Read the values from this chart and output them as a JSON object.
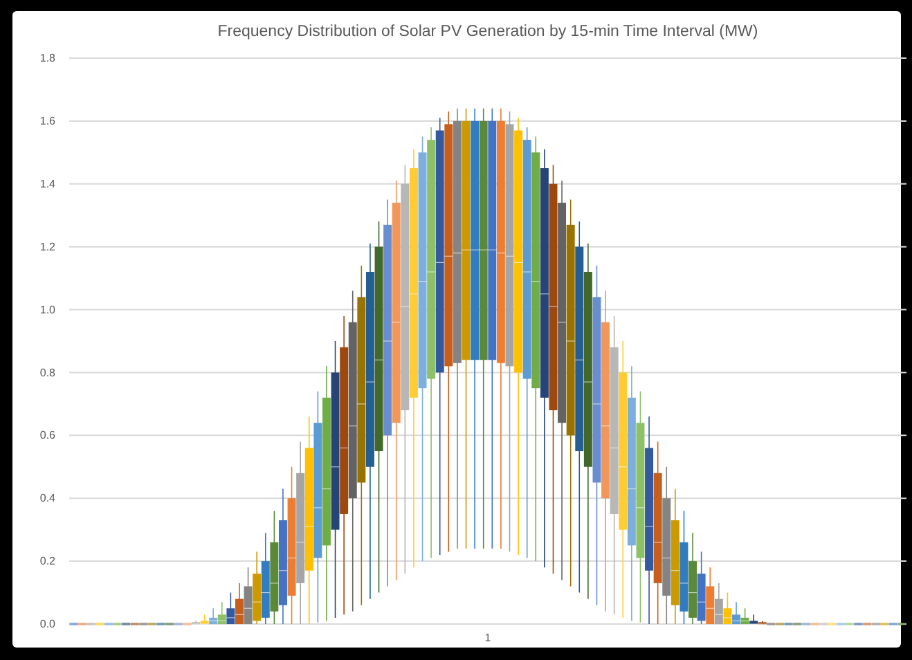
{
  "chart_data": {
    "type": "box",
    "title": "Frequency Distribution of Solar PV Generation by 15-min Time Interval (MW)",
    "categories": [
      "1"
    ],
    "ylim": [
      0,
      1.8
    ],
    "yticks": [
      {
        "value": 0,
        "label": "0.0"
      },
      {
        "value": 0.2,
        "label": "0.2"
      },
      {
        "value": 0.4,
        "label": "0.4"
      },
      {
        "value": 0.6,
        "label": "0.6"
      },
      {
        "value": 0.8,
        "label": "0.8"
      },
      {
        "value": 1,
        "label": "1.0"
      },
      {
        "value": 1.2,
        "label": "1.2"
      },
      {
        "value": 1.4,
        "label": "1.4"
      },
      {
        "value": 1.6,
        "label": "1.6"
      },
      {
        "value": 1.8,
        "label": "1.8"
      }
    ],
    "grid": "y",
    "series": [
      {
        "color": "#4472c4",
        "boxes": [
          {
            "low": 0,
            "q1": 0,
            "median": 0,
            "q3": 0,
            "high": 0
          }
        ]
      },
      {
        "color": "#ed7d31",
        "boxes": [
          {
            "low": 0,
            "q1": 0,
            "median": 0,
            "q3": 0,
            "high": 0
          }
        ]
      },
      {
        "color": "#a5a5a5",
        "boxes": [
          {
            "low": 0,
            "q1": 0,
            "median": 0,
            "q3": 0,
            "high": 0
          }
        ]
      },
      {
        "color": "#ffc000",
        "boxes": [
          {
            "low": 0,
            "q1": 0,
            "median": 0,
            "q3": 0,
            "high": 0
          }
        ]
      },
      {
        "color": "#5b9bd5",
        "boxes": [
          {
            "low": 0,
            "q1": 0,
            "median": 0,
            "q3": 0,
            "high": 0
          }
        ]
      },
      {
        "color": "#70ad47",
        "boxes": [
          {
            "low": 0,
            "q1": 0,
            "median": 0,
            "q3": 0,
            "high": 0
          }
        ]
      },
      {
        "color": "#264478",
        "boxes": [
          {
            "low": 0,
            "q1": 0,
            "median": 0,
            "q3": 0,
            "high": 0
          }
        ]
      },
      {
        "color": "#9e480e",
        "boxes": [
          {
            "low": 0,
            "q1": 0,
            "median": 0,
            "q3": 0,
            "high": 0
          }
        ]
      },
      {
        "color": "#636363",
        "boxes": [
          {
            "low": 0,
            "q1": 0,
            "median": 0,
            "q3": 0,
            "high": 0
          }
        ]
      },
      {
        "color": "#997300",
        "boxes": [
          {
            "low": 0,
            "q1": 0,
            "median": 0,
            "q3": 0,
            "high": 0
          }
        ]
      },
      {
        "color": "#255e91",
        "boxes": [
          {
            "low": 0,
            "q1": 0,
            "median": 0,
            "q3": 0,
            "high": 0
          }
        ]
      },
      {
        "color": "#43682b",
        "boxes": [
          {
            "low": 0,
            "q1": 0,
            "median": 0,
            "q3": 0,
            "high": 0
          }
        ]
      },
      {
        "color": "#698ed0",
        "boxes": [
          {
            "low": 0,
            "q1": 0,
            "median": 0,
            "q3": 0,
            "high": 0
          }
        ]
      },
      {
        "color": "#f1975a",
        "boxes": [
          {
            "low": 0,
            "q1": 0,
            "median": 0,
            "q3": 0,
            "high": 0
          }
        ]
      },
      {
        "color": "#b7b7b7",
        "boxes": [
          {
            "low": 0,
            "q1": 0,
            "median": 0,
            "q3": 0.005,
            "high": 0.01
          }
        ]
      },
      {
        "color": "#ffcd33",
        "boxes": [
          {
            "low": 0,
            "q1": 0,
            "median": 0,
            "q3": 0.01,
            "high": 0.03
          }
        ]
      },
      {
        "color": "#7cafdd",
        "boxes": [
          {
            "low": 0,
            "q1": 0,
            "median": 0.01,
            "q3": 0.02,
            "high": 0.05
          }
        ]
      },
      {
        "color": "#8cc168",
        "boxes": [
          {
            "low": 0,
            "q1": 0,
            "median": 0.01,
            "q3": 0.03,
            "high": 0.07
          }
        ]
      },
      {
        "color": "#335aa1",
        "boxes": [
          {
            "low": 0,
            "q1": 0,
            "median": 0.02,
            "q3": 0.05,
            "high": 0.1
          }
        ]
      },
      {
        "color": "#c65f1c",
        "boxes": [
          {
            "low": 0,
            "q1": 0,
            "median": 0.03,
            "q3": 0.08,
            "high": 0.13
          }
        ]
      },
      {
        "color": "#848484",
        "boxes": [
          {
            "low": 0,
            "q1": 0,
            "median": 0.05,
            "q3": 0.12,
            "high": 0.18
          }
        ]
      },
      {
        "color": "#cc9a00",
        "boxes": [
          {
            "low": 0,
            "q1": 0.01,
            "median": 0.07,
            "q3": 0.16,
            "high": 0.23
          }
        ]
      },
      {
        "color": "#327dc2",
        "boxes": [
          {
            "low": 0,
            "q1": 0.02,
            "median": 0.1,
            "q3": 0.2,
            "high": 0.29
          }
        ]
      },
      {
        "color": "#5a8a39",
        "boxes": [
          {
            "low": 0,
            "q1": 0.04,
            "median": 0.13,
            "q3": 0.26,
            "high": 0.36
          }
        ]
      },
      {
        "color": "#4472c4",
        "boxes": [
          {
            "low": 0,
            "q1": 0.06,
            "median": 0.17,
            "q3": 0.33,
            "high": 0.43
          }
        ]
      },
      {
        "color": "#ed7d31",
        "boxes": [
          {
            "low": 0,
            "q1": 0.09,
            "median": 0.21,
            "q3": 0.4,
            "high": 0.5
          }
        ]
      },
      {
        "color": "#a5a5a5",
        "boxes": [
          {
            "low": 0,
            "q1": 0.13,
            "median": 0.26,
            "q3": 0.48,
            "high": 0.58
          }
        ]
      },
      {
        "color": "#ffc000",
        "boxes": [
          {
            "low": 0,
            "q1": 0.17,
            "median": 0.31,
            "q3": 0.56,
            "high": 0.66
          }
        ]
      },
      {
        "color": "#5b9bd5",
        "boxes": [
          {
            "low": 0.005,
            "q1": 0.21,
            "median": 0.37,
            "q3": 0.64,
            "high": 0.74
          }
        ]
      },
      {
        "color": "#70ad47",
        "boxes": [
          {
            "low": 0.01,
            "q1": 0.25,
            "median": 0.43,
            "q3": 0.72,
            "high": 0.82
          }
        ]
      },
      {
        "color": "#264478",
        "boxes": [
          {
            "low": 0.02,
            "q1": 0.3,
            "median": 0.5,
            "q3": 0.8,
            "high": 0.9
          }
        ]
      },
      {
        "color": "#9e480e",
        "boxes": [
          {
            "low": 0.03,
            "q1": 0.35,
            "median": 0.56,
            "q3": 0.88,
            "high": 0.98
          }
        ]
      },
      {
        "color": "#636363",
        "boxes": [
          {
            "low": 0.04,
            "q1": 0.4,
            "median": 0.63,
            "q3": 0.96,
            "high": 1.06
          }
        ]
      },
      {
        "color": "#997300",
        "boxes": [
          {
            "low": 0.06,
            "q1": 0.45,
            "median": 0.7,
            "q3": 1.04,
            "high": 1.14
          }
        ]
      },
      {
        "color": "#255e91",
        "boxes": [
          {
            "low": 0.08,
            "q1": 0.5,
            "median": 0.77,
            "q3": 1.12,
            "high": 1.21
          }
        ]
      },
      {
        "color": "#43682b",
        "boxes": [
          {
            "low": 0.1,
            "q1": 0.55,
            "median": 0.84,
            "q3": 1.2,
            "high": 1.28
          }
        ]
      },
      {
        "color": "#698ed0",
        "boxes": [
          {
            "low": 0.12,
            "q1": 0.6,
            "median": 0.9,
            "q3": 1.27,
            "high": 1.35
          }
        ]
      },
      {
        "color": "#f1975a",
        "boxes": [
          {
            "low": 0.14,
            "q1": 0.64,
            "median": 0.96,
            "q3": 1.34,
            "high": 1.41
          }
        ]
      },
      {
        "color": "#b7b7b7",
        "boxes": [
          {
            "low": 0.16,
            "q1": 0.68,
            "median": 1.01,
            "q3": 1.4,
            "high": 1.46
          }
        ]
      },
      {
        "color": "#ffcd33",
        "boxes": [
          {
            "low": 0.18,
            "q1": 0.72,
            "median": 1.05,
            "q3": 1.45,
            "high": 1.51
          }
        ]
      },
      {
        "color": "#7cafdd",
        "boxes": [
          {
            "low": 0.2,
            "q1": 0.75,
            "median": 1.09,
            "q3": 1.5,
            "high": 1.55
          }
        ]
      },
      {
        "color": "#8cc168",
        "boxes": [
          {
            "low": 0.21,
            "q1": 0.78,
            "median": 1.12,
            "q3": 1.54,
            "high": 1.58
          }
        ]
      },
      {
        "color": "#335aa1",
        "boxes": [
          {
            "low": 0.22,
            "q1": 0.8,
            "median": 1.15,
            "q3": 1.57,
            "high": 1.61
          }
        ]
      },
      {
        "color": "#c65f1c",
        "boxes": [
          {
            "low": 0.23,
            "q1": 0.82,
            "median": 1.17,
            "q3": 1.59,
            "high": 1.63
          }
        ]
      },
      {
        "color": "#848484",
        "boxes": [
          {
            "low": 0.24,
            "q1": 0.83,
            "median": 1.18,
            "q3": 1.6,
            "high": 1.64
          }
        ]
      },
      {
        "color": "#cc9a00",
        "boxes": [
          {
            "low": 0.24,
            "q1": 0.84,
            "median": 1.19,
            "q3": 1.6,
            "high": 1.64
          }
        ]
      },
      {
        "color": "#327dc2",
        "boxes": [
          {
            "low": 0.24,
            "q1": 0.84,
            "median": 1.19,
            "q3": 1.6,
            "high": 1.64
          }
        ]
      },
      {
        "color": "#5a8a39",
        "boxes": [
          {
            "low": 0.24,
            "q1": 0.84,
            "median": 1.19,
            "q3": 1.6,
            "high": 1.64
          }
        ]
      },
      {
        "color": "#4472c4",
        "boxes": [
          {
            "low": 0.24,
            "q1": 0.84,
            "median": 1.19,
            "q3": 1.6,
            "high": 1.64
          }
        ]
      },
      {
        "color": "#ed7d31",
        "boxes": [
          {
            "low": 0.24,
            "q1": 0.83,
            "median": 1.18,
            "q3": 1.6,
            "high": 1.64
          }
        ]
      },
      {
        "color": "#a5a5a5",
        "boxes": [
          {
            "low": 0.23,
            "q1": 0.82,
            "median": 1.17,
            "q3": 1.59,
            "high": 1.63
          }
        ]
      },
      {
        "color": "#ffc000",
        "boxes": [
          {
            "low": 0.22,
            "q1": 0.8,
            "median": 1.15,
            "q3": 1.57,
            "high": 1.61
          }
        ]
      },
      {
        "color": "#5b9bd5",
        "boxes": [
          {
            "low": 0.21,
            "q1": 0.78,
            "median": 1.12,
            "q3": 1.54,
            "high": 1.58
          }
        ]
      },
      {
        "color": "#70ad47",
        "boxes": [
          {
            "low": 0.2,
            "q1": 0.75,
            "median": 1.09,
            "q3": 1.5,
            "high": 1.55
          }
        ]
      },
      {
        "color": "#264478",
        "boxes": [
          {
            "low": 0.18,
            "q1": 0.72,
            "median": 1.05,
            "q3": 1.45,
            "high": 1.51
          }
        ]
      },
      {
        "color": "#9e480e",
        "boxes": [
          {
            "low": 0.16,
            "q1": 0.68,
            "median": 1.01,
            "q3": 1.4,
            "high": 1.46
          }
        ]
      },
      {
        "color": "#636363",
        "boxes": [
          {
            "low": 0.14,
            "q1": 0.64,
            "median": 0.96,
            "q3": 1.34,
            "high": 1.41
          }
        ]
      },
      {
        "color": "#997300",
        "boxes": [
          {
            "low": 0.12,
            "q1": 0.6,
            "median": 0.9,
            "q3": 1.27,
            "high": 1.35
          }
        ]
      },
      {
        "color": "#255e91",
        "boxes": [
          {
            "low": 0.1,
            "q1": 0.55,
            "median": 0.84,
            "q3": 1.2,
            "high": 1.28
          }
        ]
      },
      {
        "color": "#43682b",
        "boxes": [
          {
            "low": 0.08,
            "q1": 0.5,
            "median": 0.77,
            "q3": 1.12,
            "high": 1.21
          }
        ]
      },
      {
        "color": "#698ed0",
        "boxes": [
          {
            "low": 0.06,
            "q1": 0.45,
            "median": 0.7,
            "q3": 1.04,
            "high": 1.14
          }
        ]
      },
      {
        "color": "#f1975a",
        "boxes": [
          {
            "low": 0.04,
            "q1": 0.4,
            "median": 0.63,
            "q3": 0.96,
            "high": 1.06
          }
        ]
      },
      {
        "color": "#b7b7b7",
        "boxes": [
          {
            "low": 0.03,
            "q1": 0.35,
            "median": 0.56,
            "q3": 0.88,
            "high": 0.98
          }
        ]
      },
      {
        "color": "#ffcd33",
        "boxes": [
          {
            "low": 0.02,
            "q1": 0.3,
            "median": 0.5,
            "q3": 0.8,
            "high": 0.9
          }
        ]
      },
      {
        "color": "#7cafdd",
        "boxes": [
          {
            "low": 0.01,
            "q1": 0.25,
            "median": 0.43,
            "q3": 0.72,
            "high": 0.82
          }
        ]
      },
      {
        "color": "#8cc168",
        "boxes": [
          {
            "low": 0.005,
            "q1": 0.21,
            "median": 0.37,
            "q3": 0.64,
            "high": 0.74
          }
        ]
      },
      {
        "color": "#335aa1",
        "boxes": [
          {
            "low": 0,
            "q1": 0.17,
            "median": 0.31,
            "q3": 0.56,
            "high": 0.66
          }
        ]
      },
      {
        "color": "#c65f1c",
        "boxes": [
          {
            "low": 0,
            "q1": 0.13,
            "median": 0.26,
            "q3": 0.48,
            "high": 0.58
          }
        ]
      },
      {
        "color": "#848484",
        "boxes": [
          {
            "low": 0,
            "q1": 0.09,
            "median": 0.21,
            "q3": 0.4,
            "high": 0.5
          }
        ]
      },
      {
        "color": "#cc9a00",
        "boxes": [
          {
            "low": 0,
            "q1": 0.06,
            "median": 0.17,
            "q3": 0.33,
            "high": 0.43
          }
        ]
      },
      {
        "color": "#327dc2",
        "boxes": [
          {
            "low": 0,
            "q1": 0.04,
            "median": 0.13,
            "q3": 0.26,
            "high": 0.36
          }
        ]
      },
      {
        "color": "#5a8a39",
        "boxes": [
          {
            "low": 0,
            "q1": 0.02,
            "median": 0.1,
            "q3": 0.2,
            "high": 0.29
          }
        ]
      },
      {
        "color": "#4472c4",
        "boxes": [
          {
            "low": 0,
            "q1": 0.01,
            "median": 0.07,
            "q3": 0.16,
            "high": 0.23
          }
        ]
      },
      {
        "color": "#ed7d31",
        "boxes": [
          {
            "low": 0,
            "q1": 0,
            "median": 0.05,
            "q3": 0.12,
            "high": 0.18
          }
        ]
      },
      {
        "color": "#a5a5a5",
        "boxes": [
          {
            "low": 0,
            "q1": 0,
            "median": 0.03,
            "q3": 0.08,
            "high": 0.13
          }
        ]
      },
      {
        "color": "#ffc000",
        "boxes": [
          {
            "low": 0,
            "q1": 0,
            "median": 0.02,
            "q3": 0.05,
            "high": 0.1
          }
        ]
      },
      {
        "color": "#5b9bd5",
        "boxes": [
          {
            "low": 0,
            "q1": 0,
            "median": 0.01,
            "q3": 0.03,
            "high": 0.07
          }
        ]
      },
      {
        "color": "#70ad47",
        "boxes": [
          {
            "low": 0,
            "q1": 0,
            "median": 0.01,
            "q3": 0.02,
            "high": 0.05
          }
        ]
      },
      {
        "color": "#264478",
        "boxes": [
          {
            "low": 0,
            "q1": 0,
            "median": 0,
            "q3": 0.01,
            "high": 0.03
          }
        ]
      },
      {
        "color": "#9e480e",
        "boxes": [
          {
            "low": 0,
            "q1": 0,
            "median": 0,
            "q3": 0.005,
            "high": 0.01
          }
        ]
      },
      {
        "color": "#636363",
        "boxes": [
          {
            "low": 0,
            "q1": 0,
            "median": 0,
            "q3": 0,
            "high": 0
          }
        ]
      },
      {
        "color": "#997300",
        "boxes": [
          {
            "low": 0,
            "q1": 0,
            "median": 0,
            "q3": 0,
            "high": 0
          }
        ]
      },
      {
        "color": "#255e91",
        "boxes": [
          {
            "low": 0,
            "q1": 0,
            "median": 0,
            "q3": 0,
            "high": 0
          }
        ]
      },
      {
        "color": "#43682b",
        "boxes": [
          {
            "low": 0,
            "q1": 0,
            "median": 0,
            "q3": 0,
            "high": 0
          }
        ]
      },
      {
        "color": "#698ed0",
        "boxes": [
          {
            "low": 0,
            "q1": 0,
            "median": 0,
            "q3": 0,
            "high": 0
          }
        ]
      },
      {
        "color": "#f1975a",
        "boxes": [
          {
            "low": 0,
            "q1": 0,
            "median": 0,
            "q3": 0,
            "high": 0
          }
        ]
      },
      {
        "color": "#b7b7b7",
        "boxes": [
          {
            "low": 0,
            "q1": 0,
            "median": 0,
            "q3": 0,
            "high": 0
          }
        ]
      },
      {
        "color": "#ffcd33",
        "boxes": [
          {
            "low": 0,
            "q1": 0,
            "median": 0,
            "q3": 0,
            "high": 0
          }
        ]
      },
      {
        "color": "#7cafdd",
        "boxes": [
          {
            "low": 0,
            "q1": 0,
            "median": 0,
            "q3": 0,
            "high": 0
          }
        ]
      },
      {
        "color": "#8cc168",
        "boxes": [
          {
            "low": 0,
            "q1": 0,
            "median": 0,
            "q3": 0,
            "high": 0
          }
        ]
      },
      {
        "color": "#335aa1",
        "boxes": [
          {
            "low": 0,
            "q1": 0,
            "median": 0,
            "q3": 0,
            "high": 0
          }
        ]
      },
      {
        "color": "#c65f1c",
        "boxes": [
          {
            "low": 0,
            "q1": 0,
            "median": 0,
            "q3": 0,
            "high": 0
          }
        ]
      },
      {
        "color": "#848484",
        "boxes": [
          {
            "low": 0,
            "q1": 0,
            "median": 0,
            "q3": 0,
            "high": 0
          }
        ]
      },
      {
        "color": "#cc9a00",
        "boxes": [
          {
            "low": 0,
            "q1": 0,
            "median": 0,
            "q3": 0,
            "high": 0
          }
        ]
      },
      {
        "color": "#327dc2",
        "boxes": [
          {
            "low": 0,
            "q1": 0,
            "median": 0,
            "q3": 0,
            "high": 0
          }
        ]
      },
      {
        "color": "#5a8a39",
        "boxes": [
          {
            "low": 0,
            "q1": 0,
            "median": 0,
            "q3": 0,
            "high": 0
          }
        ]
      }
    ]
  }
}
